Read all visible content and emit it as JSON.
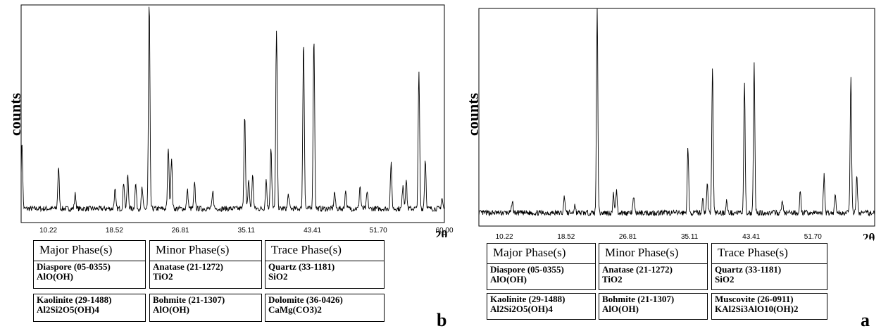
{
  "chart_data": [
    {
      "type": "line",
      "panel": "b",
      "ylabel": "counts",
      "xlabel": "2θ",
      "xlim": [
        6.8,
        60.0
      ],
      "ylim": [
        0,
        100
      ],
      "x_ticks": [
        "10.22",
        "18.52",
        "26.81",
        "35.11",
        "43.41",
        "51.70",
        "60.00"
      ],
      "baseline": 4,
      "peaks": [
        {
          "x": 6.9,
          "y": 32
        },
        {
          "x": 11.5,
          "y": 20
        },
        {
          "x": 13.6,
          "y": 7
        },
        {
          "x": 18.6,
          "y": 9
        },
        {
          "x": 19.7,
          "y": 13
        },
        {
          "x": 20.2,
          "y": 16
        },
        {
          "x": 21.2,
          "y": 12
        },
        {
          "x": 22.0,
          "y": 10
        },
        {
          "x": 22.9,
          "y": 100
        },
        {
          "x": 25.3,
          "y": 30
        },
        {
          "x": 25.7,
          "y": 24
        },
        {
          "x": 27.7,
          "y": 9
        },
        {
          "x": 28.6,
          "y": 12
        },
        {
          "x": 30.9,
          "y": 8
        },
        {
          "x": 34.9,
          "y": 46
        },
        {
          "x": 35.4,
          "y": 14
        },
        {
          "x": 35.9,
          "y": 16
        },
        {
          "x": 37.6,
          "y": 14
        },
        {
          "x": 38.2,
          "y": 30
        },
        {
          "x": 38.9,
          "y": 86
        },
        {
          "x": 40.4,
          "y": 7
        },
        {
          "x": 42.3,
          "y": 82
        },
        {
          "x": 43.6,
          "y": 84
        },
        {
          "x": 46.2,
          "y": 8
        },
        {
          "x": 47.6,
          "y": 9
        },
        {
          "x": 49.4,
          "y": 11
        },
        {
          "x": 50.3,
          "y": 8
        },
        {
          "x": 53.3,
          "y": 22
        },
        {
          "x": 54.8,
          "y": 12
        },
        {
          "x": 55.2,
          "y": 14
        },
        {
          "x": 56.8,
          "y": 66
        },
        {
          "x": 57.6,
          "y": 24
        },
        {
          "x": 59.7,
          "y": 5
        }
      ]
    },
    {
      "type": "line",
      "panel": "a",
      "ylabel": "counts",
      "xlabel": "2θ",
      "xlim": [
        6.8,
        60.0
      ],
      "ylim": [
        0,
        100
      ],
      "x_ticks": [
        "10.22",
        "18.52",
        "26.81",
        "35.11",
        "43.41",
        "51.70"
      ],
      "baseline": 4,
      "peaks": [
        {
          "x": 11.3,
          "y": 6
        },
        {
          "x": 18.3,
          "y": 8
        },
        {
          "x": 19.7,
          "y": 4
        },
        {
          "x": 22.7,
          "y": 100
        },
        {
          "x": 24.9,
          "y": 9
        },
        {
          "x": 25.3,
          "y": 11
        },
        {
          "x": 27.6,
          "y": 8
        },
        {
          "x": 34.9,
          "y": 32
        },
        {
          "x": 36.9,
          "y": 7
        },
        {
          "x": 37.5,
          "y": 14
        },
        {
          "x": 38.2,
          "y": 71
        },
        {
          "x": 40.1,
          "y": 6
        },
        {
          "x": 42.5,
          "y": 62
        },
        {
          "x": 43.8,
          "y": 72
        },
        {
          "x": 47.6,
          "y": 6
        },
        {
          "x": 50.0,
          "y": 10
        },
        {
          "x": 53.2,
          "y": 18
        },
        {
          "x": 54.7,
          "y": 9
        },
        {
          "x": 56.8,
          "y": 67
        },
        {
          "x": 57.6,
          "y": 18
        }
      ]
    }
  ],
  "panels": {
    "b": {
      "letter": "b",
      "ylabel": "counts",
      "theta": "2θ",
      "phases": {
        "major": {
          "title": "Major Phase(s)",
          "entries": [
            {
              "name": "Diaspore (05-0355)",
              "formula": "AlO(OH)"
            },
            {
              "name": "Kaolinite (29-1488)",
              "formula": "Al2Si2O5(OH)4"
            }
          ]
        },
        "minor": {
          "title": "Minor Phase(s)",
          "entries": [
            {
              "name": "Anatase (21-1272)",
              "formula": "TiO2"
            },
            {
              "name": "Bohmite (21-1307)",
              "formula": "AlO(OH)"
            }
          ]
        },
        "trace": {
          "title": "Trace Phase(s)",
          "entries": [
            {
              "name": "Quartz (33-1181)",
              "formula": "SiO2"
            },
            {
              "name": "Dolomite (36-0426)",
              "formula": "CaMg(CO3)2"
            }
          ]
        }
      }
    },
    "a": {
      "letter": "a",
      "ylabel": "counts",
      "theta": "2θ",
      "phases": {
        "major": {
          "title": "Major Phase(s)",
          "entries": [
            {
              "name": "Diaspore (05-0355)",
              "formula": "AlO(OH)"
            },
            {
              "name": "Kaolinite (29-1488)",
              "formula": "Al2Si2O5(OH)4"
            }
          ]
        },
        "minor": {
          "title": "Minor Phase(s)",
          "entries": [
            {
              "name": "Anatase (21-1272)",
              "formula": "TiO2"
            },
            {
              "name": "Bohmite (21-1307)",
              "formula": "AlO(OH)"
            }
          ]
        },
        "trace": {
          "title": "Trace Phase(s)",
          "entries": [
            {
              "name": "Quartz (33-1181)",
              "formula": "SiO2"
            },
            {
              "name": "Muscovite (26-0911)",
              "formula": "KAl2Si3AlO10(OH)2"
            }
          ]
        }
      }
    }
  }
}
